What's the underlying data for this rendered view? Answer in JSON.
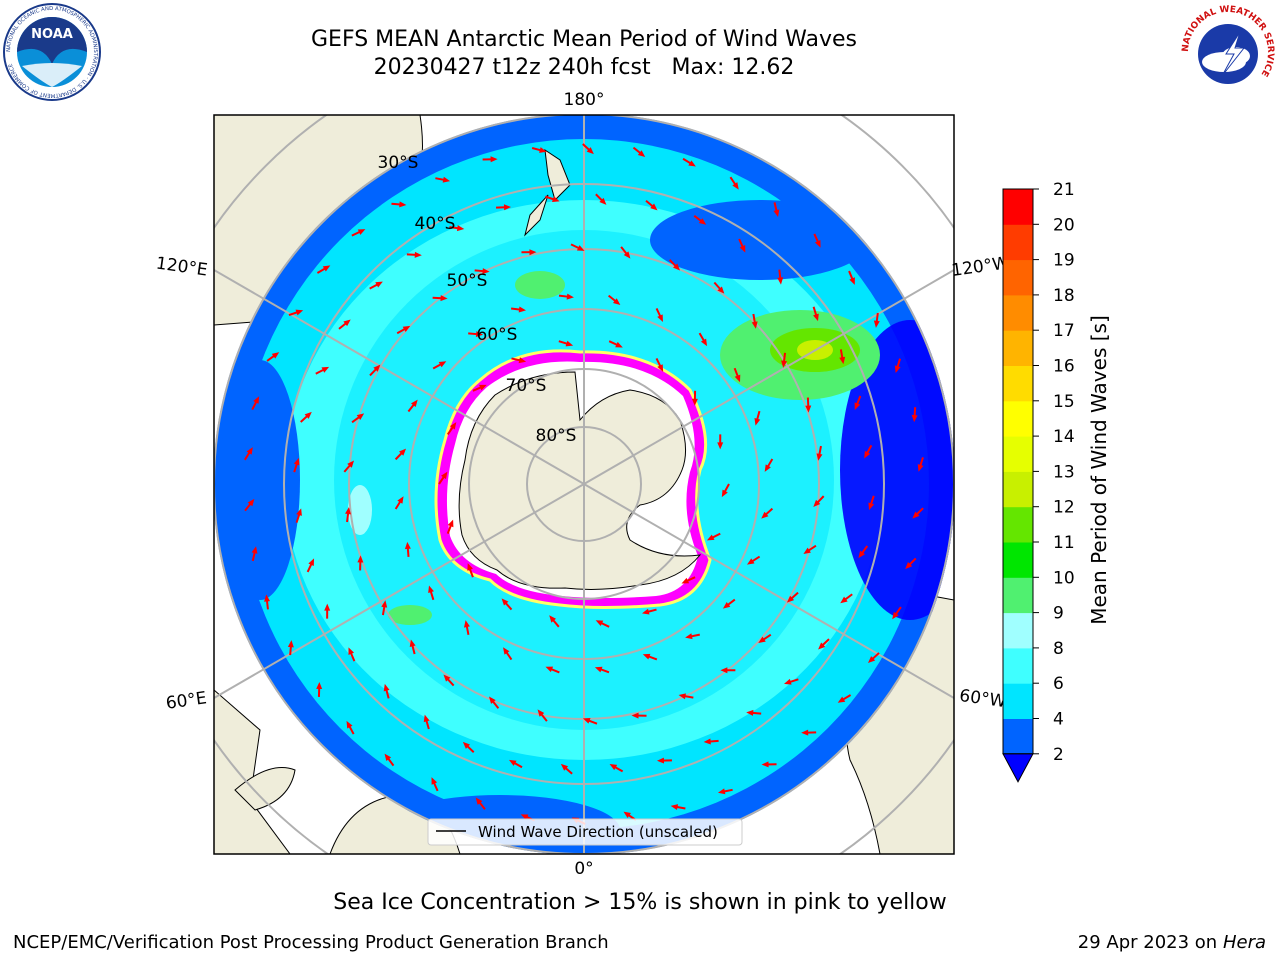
{
  "header": {
    "title_line1": "GEFS MEAN Antarctic Mean Period of Wind Waves",
    "title_line2": "20230427 t12z 240h fcst   Max: 12.62"
  },
  "logos": {
    "left": {
      "text": "NOAA",
      "ring_text": "NATIONAL OCEANIC AND ATMOSPHERIC ADMINISTRATION · U.S. DEPARTMENT OF COMMERCE"
    },
    "right": {
      "ring_text": "NATIONAL WEATHER SERVICE"
    }
  },
  "map": {
    "lon_labels": {
      "top": "180°",
      "bottom": "0°",
      "upper_left": "120°E",
      "upper_right": "120°W",
      "lower_left": "60°E",
      "lower_right": "60°W"
    },
    "lat_labels": [
      "30°S",
      "40°S",
      "50°S",
      "60°S",
      "70°S",
      "80°S"
    ],
    "legend": "Wind Wave Direction (unscaled)",
    "colors": {
      "ocean_low": "#0000ff",
      "ocean_mid": "#00e5ff",
      "land": "#efedda",
      "ice": "#ff00ff",
      "arrows": "#ff0000"
    }
  },
  "colorbar": {
    "label": "Mean Period of Wind Waves [s]",
    "ticks": [
      "2",
      "4",
      "6",
      "8",
      "9",
      "10",
      "11",
      "12",
      "13",
      "14",
      "15",
      "16",
      "17",
      "18",
      "19",
      "20",
      "21"
    ],
    "bins": [
      "#0064ff",
      "#00e5ff",
      "#3fffff",
      "#a0ffff",
      "#50f070",
      "#00e600",
      "#64e600",
      "#c8f000",
      "#e6ff00",
      "#ffff00",
      "#ffdc00",
      "#ffb400",
      "#ff8c00",
      "#ff6400",
      "#ff3c00",
      "#ff0000"
    ],
    "under_color": "#0000ff"
  },
  "caption": "Sea Ice Concentration > 15% is shown in pink to yellow",
  "footer": {
    "left": "NCEP/EMC/Verification Post Processing Product Generation Branch",
    "right_prefix": "29 Apr 2023 on ",
    "right_host": "Hera"
  }
}
